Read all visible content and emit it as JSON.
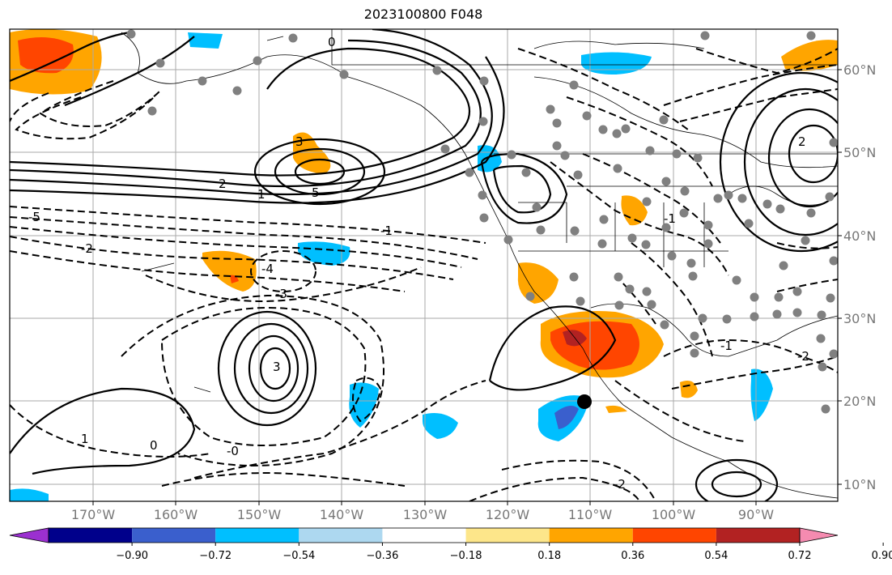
{
  "title": "2023100800 F048",
  "longitude_labels": [
    "170°W",
    "160°W",
    "150°W",
    "140°W",
    "130°W",
    "120°W",
    "110°W",
    "100°W",
    "90°W"
  ],
  "latitude_labels": [
    "60°N",
    "50°N",
    "40°N",
    "30°N",
    "20°N",
    "10°N"
  ],
  "colorbar": {
    "tick_labels": [
      "−0.90",
      "−0.72",
      "−0.54",
      "−0.36",
      "−0.18",
      "0.18",
      "0.36",
      "0.54",
      "0.72",
      "0.90"
    ],
    "colors": [
      "#9b30d0",
      "#00008b",
      "#3a5fcd",
      "#00bfff",
      "#add8f0",
      "#ffffff",
      "#fde68a",
      "#ffa500",
      "#ff4500",
      "#b22222",
      "#f58bb0"
    ]
  },
  "contour_labels": [
    "0",
    "1",
    "2",
    "3",
    "5",
    "-1",
    "-2",
    "-3",
    "-4",
    "-5",
    "0",
    "1",
    "2",
    "3",
    "-1",
    "-2",
    "-0",
    "-1",
    "-2"
  ],
  "colors": {
    "contour": "#000000",
    "grid": "#aaaaaa",
    "coast": "#000000",
    "station": "#808080",
    "marker": "#000000"
  },
  "map_extent": {
    "lon": [
      -180,
      -80
    ],
    "lat": [
      7,
      65
    ]
  }
}
